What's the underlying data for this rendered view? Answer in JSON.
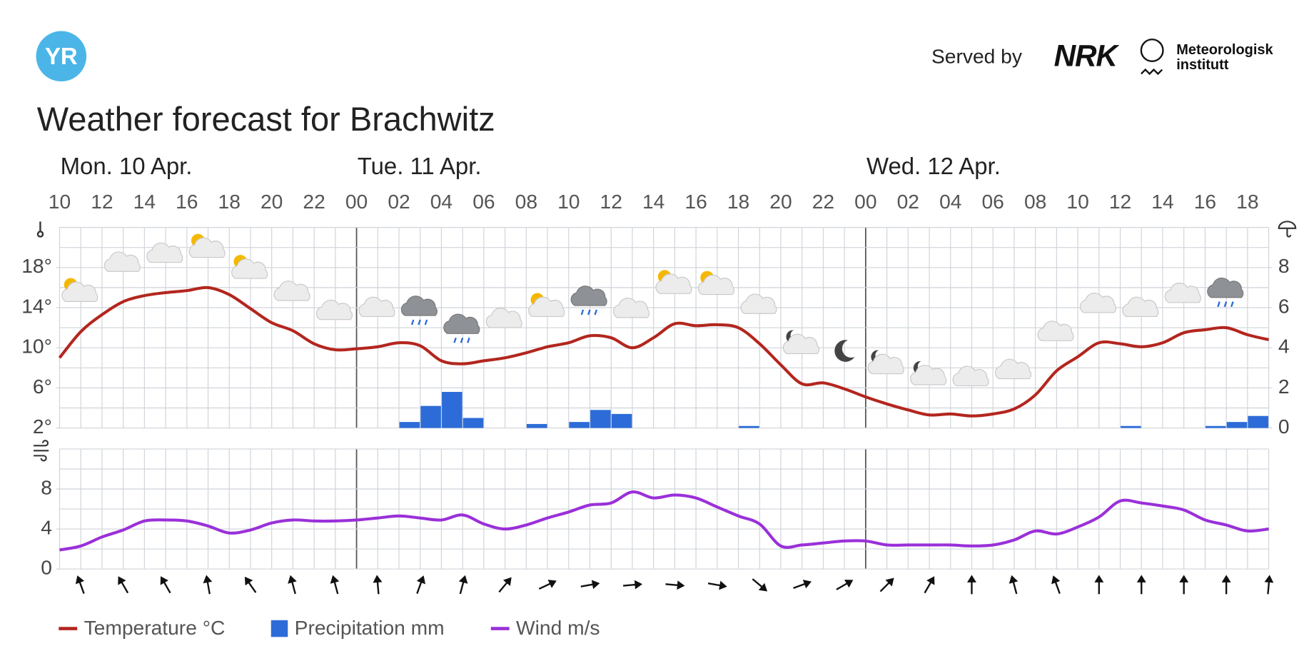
{
  "header": {
    "logo": "YR",
    "served_by": "Served by",
    "partner": "NRK",
    "institute": [
      "Meteorologisk",
      "institutt"
    ]
  },
  "chart_data": {
    "type": "line",
    "title": "Weather forecast for Brachwitz",
    "days": [
      {
        "label": "Mon. 10 Apr.",
        "index": 0
      },
      {
        "label": "Tue. 11 Apr.",
        "index": 14
      },
      {
        "label": "Wed. 12 Apr.",
        "index": 38
      }
    ],
    "categories": [
      "10",
      null,
      "12",
      null,
      "14",
      null,
      "16",
      null,
      "18",
      null,
      "20",
      null,
      "22",
      null,
      "00",
      null,
      "02",
      null,
      "04",
      null,
      "06",
      null,
      "08",
      null,
      "10",
      null,
      "12",
      null,
      "14",
      null,
      "16",
      null,
      "18",
      null,
      "20",
      null,
      "22",
      null,
      "00",
      null,
      "02",
      null,
      "04",
      null,
      "06",
      null,
      "08",
      null,
      "10",
      null,
      "12",
      null,
      "14",
      null,
      "16",
      null,
      "18",
      null
    ],
    "ylim": [
      2,
      22
    ],
    "yticks": [
      {
        "value": 2,
        "label": "2°"
      },
      {
        "value": 6,
        "label": "6°"
      },
      {
        "value": 10,
        "label": "10°"
      },
      {
        "value": 14,
        "label": "14°"
      },
      {
        "value": 18,
        "label": "18°"
      }
    ],
    "y2lim": [
      0,
      10
    ],
    "y2ticks": [
      0,
      2,
      4,
      6,
      8
    ],
    "wind_ylim": [
      0,
      12
    ],
    "wind_yticks": [
      0,
      4,
      8
    ],
    "grid": true,
    "series": [
      {
        "name": "Temperature °C",
        "type": "line",
        "axis": "y",
        "color": "#b3261e",
        "values": [
          9.0,
          11.6,
          13.3,
          14.6,
          15.2,
          15.5,
          15.7,
          16.0,
          15.3,
          13.9,
          12.5,
          11.7,
          10.4,
          9.8,
          9.9,
          10.1,
          10.5,
          10.2,
          8.7,
          8.4,
          8.7,
          9.0,
          9.5,
          10.1,
          10.5,
          11.2,
          11.0,
          10.0,
          11.0,
          12.4,
          12.2,
          12.3,
          12.0,
          10.4,
          8.3,
          6.4,
          6.5,
          5.9,
          5.1,
          4.4,
          3.8,
          3.3,
          3.4,
          3.2,
          3.4,
          3.9,
          5.3,
          7.7,
          9.1,
          10.5,
          10.4,
          10.1,
          10.5,
          11.5,
          11.8,
          12.0,
          11.3,
          10.8
        ]
      },
      {
        "name": "Precipitation mm",
        "type": "bar",
        "axis": "y2",
        "color": "#2d6cd8",
        "values": [
          0,
          0,
          0,
          0,
          0,
          0,
          0,
          0,
          0,
          0,
          0,
          0,
          0,
          0,
          0,
          0,
          0.3,
          1.1,
          1.8,
          0.5,
          0,
          0,
          0.2,
          0,
          0.3,
          0.9,
          0.7,
          0,
          0,
          0,
          0,
          0,
          0.1,
          0,
          0,
          0,
          0,
          0,
          0,
          0,
          0,
          0,
          0,
          0,
          0,
          0,
          0,
          0,
          0,
          0,
          0.1,
          0,
          0,
          0,
          0.1,
          0.3,
          0.6,
          null
        ]
      },
      {
        "name": "Wind m/s",
        "type": "line",
        "axis": "wind",
        "color": "#9a30d9",
        "values": [
          1.9,
          2.3,
          3.2,
          3.9,
          4.8,
          4.9,
          4.8,
          4.3,
          3.6,
          3.9,
          4.6,
          4.9,
          4.8,
          4.8,
          4.9,
          5.1,
          5.3,
          5.1,
          4.9,
          5.4,
          4.5,
          4.0,
          4.4,
          5.1,
          5.7,
          6.4,
          6.6,
          7.7,
          7.1,
          7.4,
          7.1,
          6.2,
          5.3,
          4.5,
          2.3,
          2.4,
          2.6,
          2.8,
          2.8,
          2.4,
          2.4,
          2.4,
          2.4,
          2.3,
          2.4,
          2.9,
          3.8,
          3.5,
          4.2,
          5.2,
          6.8,
          6.6,
          6.3,
          5.9,
          4.9,
          4.4,
          3.8,
          4.0
        ],
        "directions": [
          null,
          -20,
          null,
          -30,
          null,
          -30,
          null,
          -10,
          null,
          -35,
          null,
          -15,
          null,
          -15,
          null,
          -5,
          null,
          20,
          null,
          15,
          null,
          40,
          null,
          65,
          null,
          80,
          null,
          85,
          null,
          95,
          null,
          100,
          null,
          130,
          null,
          70,
          null,
          60,
          null,
          45,
          null,
          30,
          null,
          0,
          null,
          -15,
          null,
          -20,
          null,
          0,
          null,
          0,
          null,
          0,
          null,
          0,
          null,
          5
        ]
      }
    ]
  }
}
